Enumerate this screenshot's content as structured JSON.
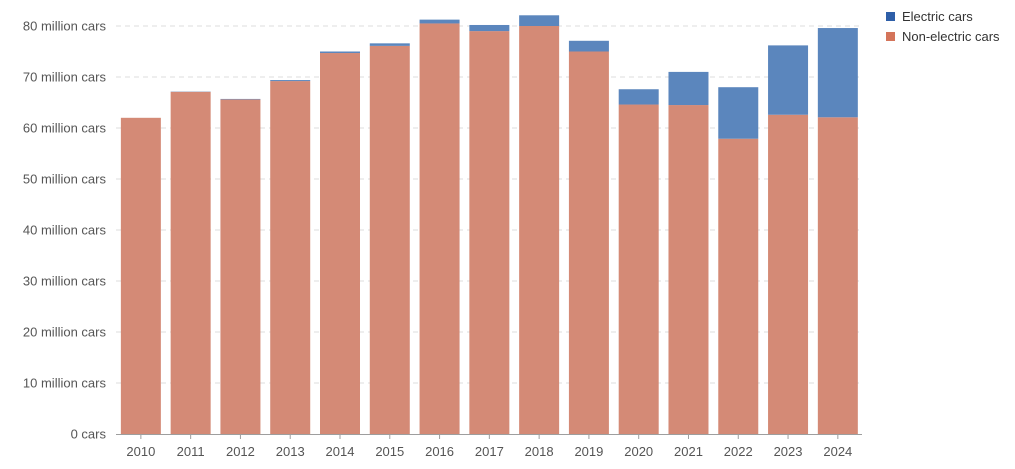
{
  "chart_data": {
    "type": "bar",
    "stacked": true,
    "title": "",
    "xlabel": "",
    "ylabel": "",
    "categories": [
      "2010",
      "2011",
      "2012",
      "2013",
      "2014",
      "2015",
      "2016",
      "2017",
      "2018",
      "2019",
      "2020",
      "2021",
      "2022",
      "2023",
      "2024"
    ],
    "series": [
      {
        "name": "Non-electric cars",
        "color": "#d48a76",
        "values": [
          62.0,
          67.1,
          65.6,
          69.2,
          74.7,
          76.1,
          80.5,
          79.0,
          80.0,
          75.0,
          64.6,
          64.5,
          57.9,
          62.6,
          62.1
        ]
      },
      {
        "name": "Electric cars",
        "color": "#5b86bd",
        "values": [
          0.0,
          0.05,
          0.1,
          0.2,
          0.3,
          0.5,
          0.75,
          1.2,
          2.1,
          2.1,
          3.0,
          6.5,
          10.1,
          13.6,
          17.5
        ]
      }
    ],
    "ylim": [
      0,
      80
    ],
    "yticks": [
      {
        "value": 0,
        "label": "0 cars"
      },
      {
        "value": 10,
        "label": "10 million cars"
      },
      {
        "value": 20,
        "label": "20 million cars"
      },
      {
        "value": 30,
        "label": "30 million cars"
      },
      {
        "value": 40,
        "label": "40 million cars"
      },
      {
        "value": 50,
        "label": "50 million cars"
      },
      {
        "value": 60,
        "label": "60 million cars"
      },
      {
        "value": 70,
        "label": "70 million cars"
      },
      {
        "value": 80,
        "label": "80 million cars"
      }
    ],
    "grid": true,
    "legend": {
      "position": "top-right",
      "entries": [
        {
          "label": "Electric cars",
          "color": "#2e5fa8"
        },
        {
          "label": "Non-electric cars",
          "color": "#d4745a"
        }
      ]
    }
  }
}
